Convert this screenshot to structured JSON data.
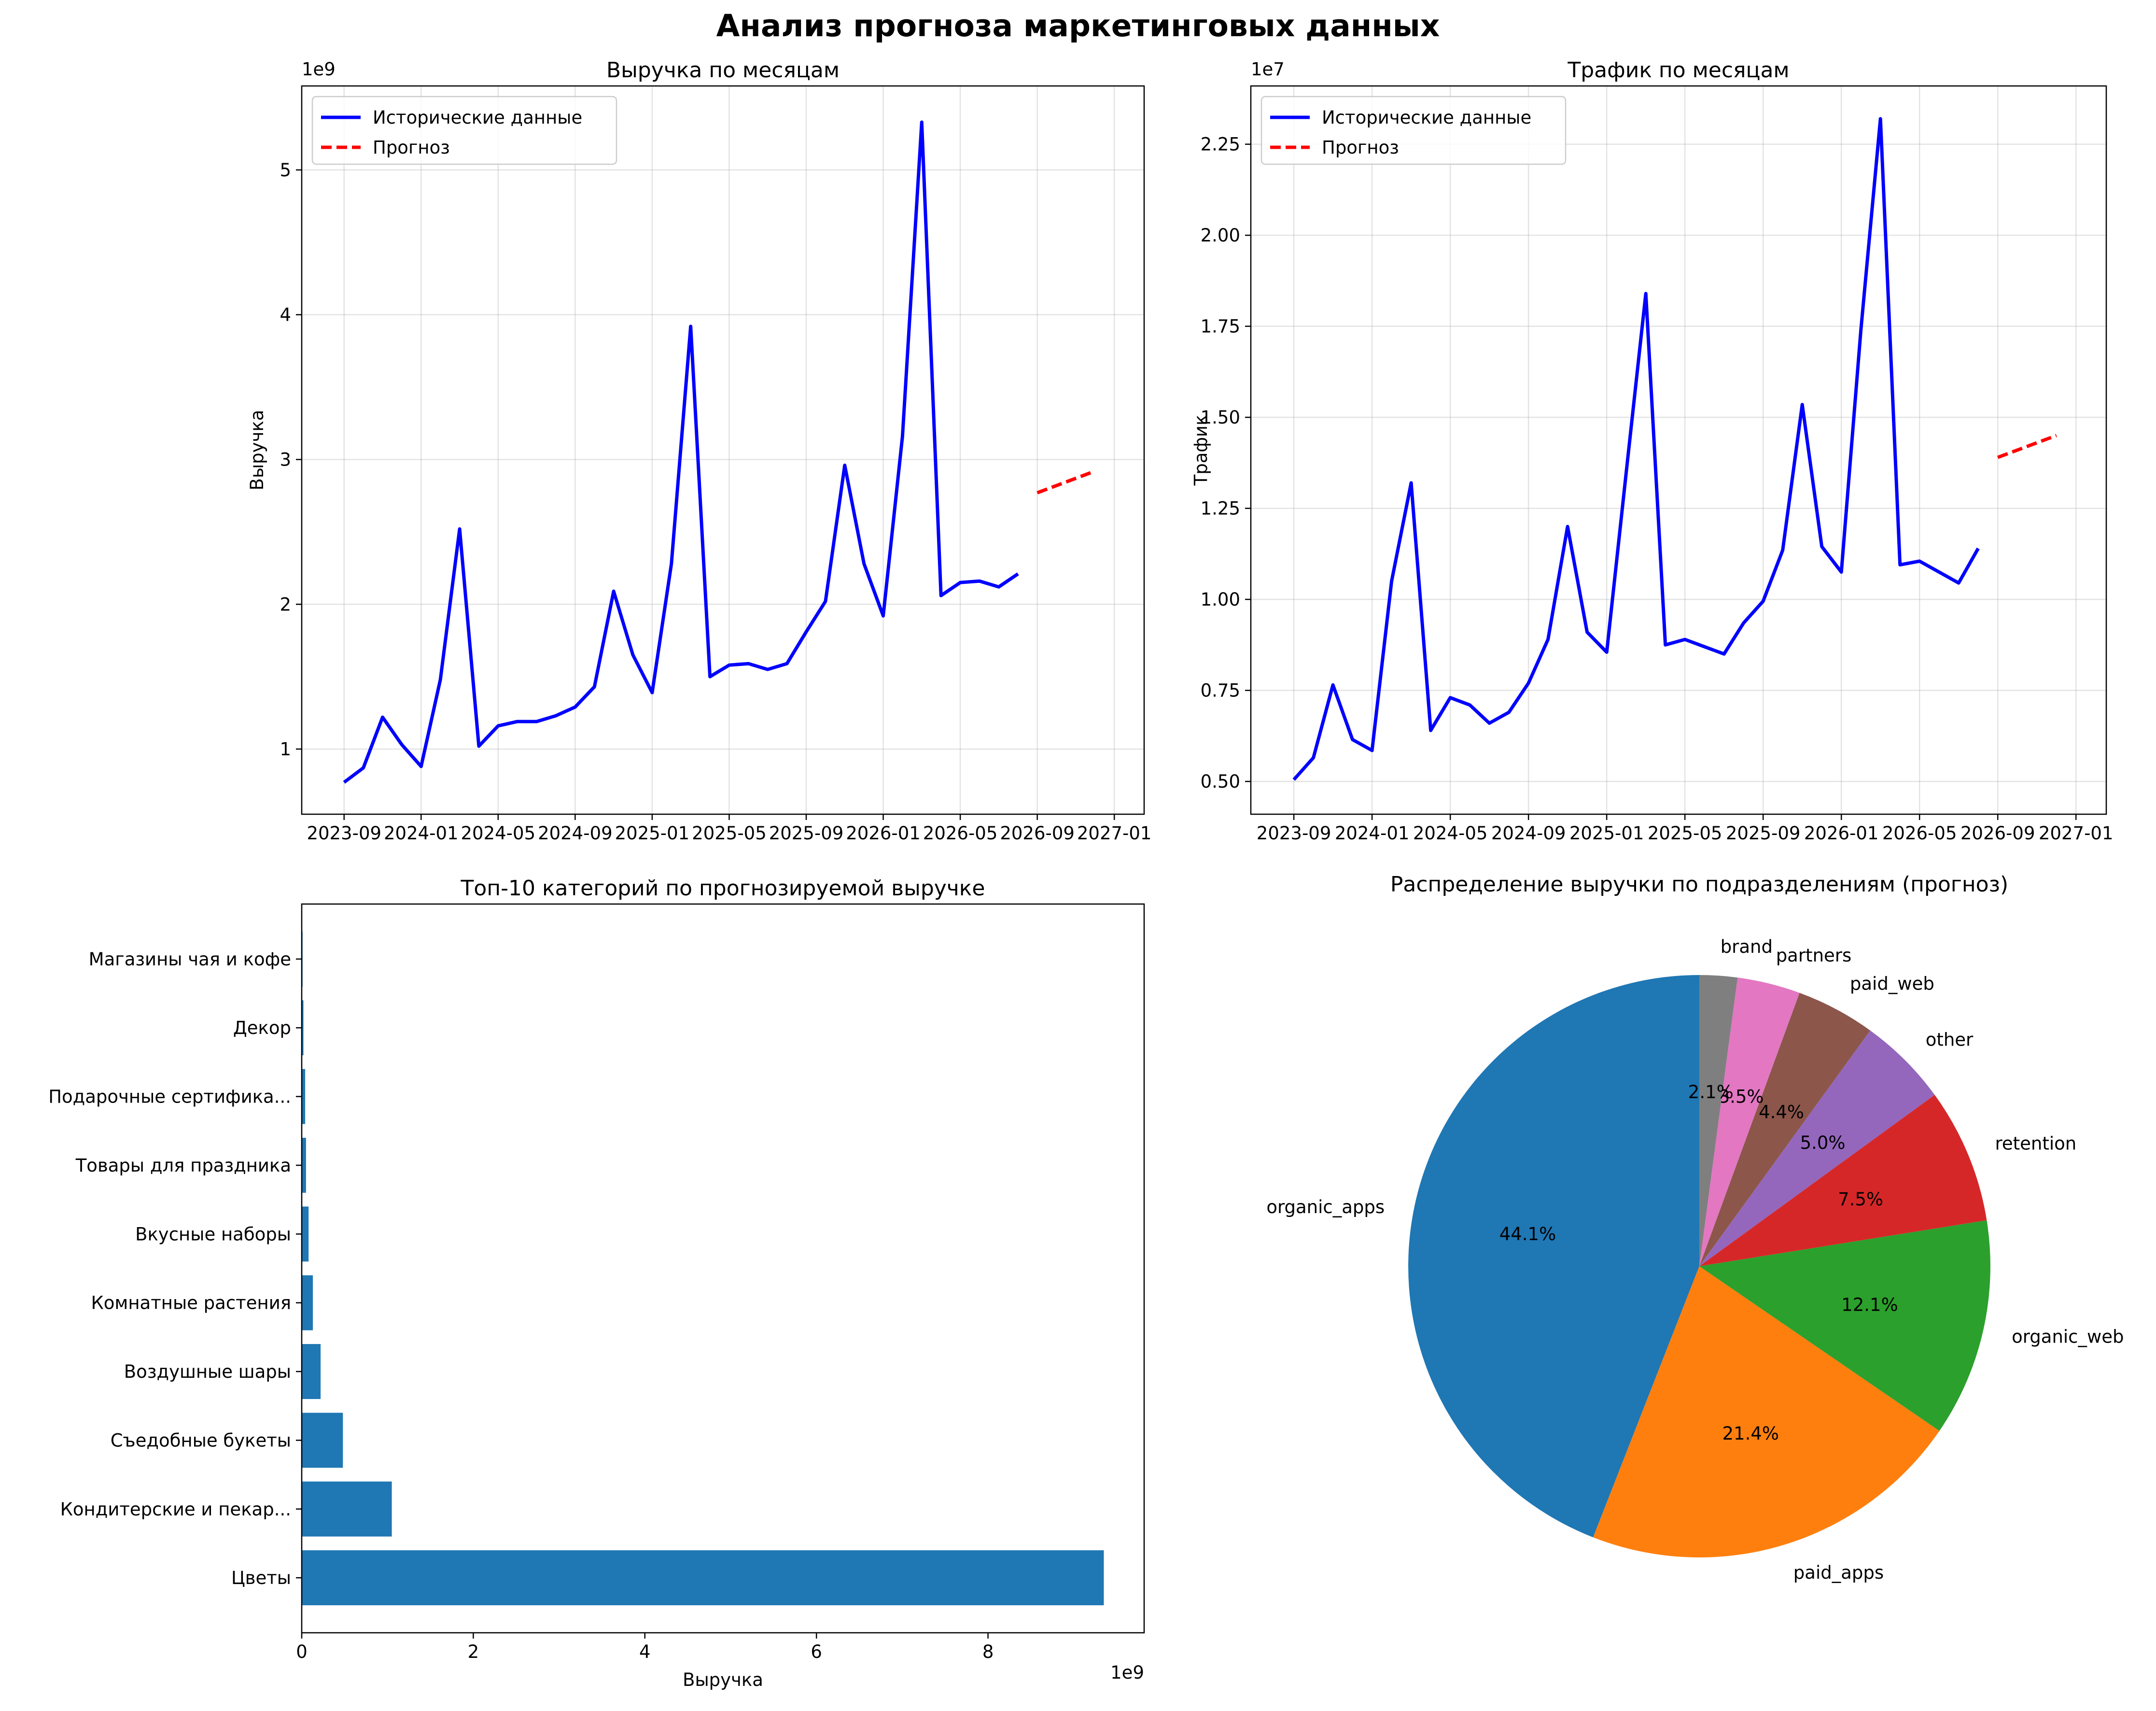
{
  "figure": {
    "title": "Анализ прогноза маркетинговых данных"
  },
  "chart_data": [
    {
      "type": "line",
      "title": "Выручка по месяцам",
      "xlabel": "",
      "ylabel": "Выручка",
      "offset_label": "1e9",
      "x_ticks": [
        "2023-09",
        "2024-01",
        "2024-05",
        "2024-09",
        "2025-01",
        "2025-05",
        "2025-09",
        "2026-01",
        "2026-05",
        "2026-09",
        "2027-01"
      ],
      "y_ticks": [
        "1",
        "2",
        "3",
        "4",
        "5"
      ],
      "ylim": [
        0.55,
        5.58
      ],
      "grid": true,
      "legend": "upper-left",
      "series": [
        {
          "name": "Исторические данные",
          "color": "#0000ff",
          "style": "solid",
          "x": [
            "2023-09",
            "2023-10",
            "2023-11",
            "2023-12",
            "2024-01",
            "2024-02",
            "2024-03",
            "2024-04",
            "2024-05",
            "2024-06",
            "2024-07",
            "2024-08",
            "2024-09",
            "2024-10",
            "2024-11",
            "2024-12",
            "2025-01",
            "2025-02",
            "2025-03",
            "2025-04",
            "2025-05",
            "2025-06",
            "2025-07",
            "2025-08",
            "2025-09",
            "2025-10",
            "2025-11",
            "2025-12",
            "2026-01",
            "2026-02",
            "2026-03",
            "2026-04",
            "2026-05",
            "2026-06",
            "2026-07",
            "2026-08"
          ],
          "values": [
            0.77,
            0.87,
            1.22,
            1.03,
            0.88,
            1.48,
            2.52,
            1.02,
            1.16,
            1.19,
            1.19,
            1.23,
            1.29,
            1.43,
            2.09,
            1.65,
            1.39,
            2.28,
            3.92,
            1.5,
            1.58,
            1.59,
            1.55,
            1.59,
            1.81,
            2.02,
            2.96,
            2.28,
            1.92,
            3.16,
            5.33,
            2.06,
            2.15,
            2.16,
            2.12,
            2.21
          ]
        },
        {
          "name": "Прогноз",
          "color": "#ff0000",
          "style": "dashed",
          "x": [
            "2026-09",
            "2026-12"
          ],
          "values": [
            2.77,
            2.92
          ]
        }
      ]
    },
    {
      "type": "line",
      "title": "Трафик по месяцам",
      "xlabel": "",
      "ylabel": "Трафик",
      "offset_label": "1e7",
      "x_ticks": [
        "2023-09",
        "2024-01",
        "2024-05",
        "2024-09",
        "2025-01",
        "2025-05",
        "2025-09",
        "2026-01",
        "2026-05",
        "2026-09",
        "2027-01"
      ],
      "y_ticks": [
        "0.50",
        "0.75",
        "1.00",
        "1.25",
        "1.50",
        "1.75",
        "2.00",
        "2.25"
      ],
      "ylim": [
        0.41,
        2.41
      ],
      "grid": true,
      "legend": "upper-left",
      "series": [
        {
          "name": "Исторические данные",
          "color": "#0000ff",
          "style": "solid",
          "x": [
            "2023-09",
            "2023-10",
            "2023-11",
            "2023-12",
            "2024-01",
            "2024-02",
            "2024-03",
            "2024-04",
            "2024-05",
            "2024-06",
            "2024-07",
            "2024-08",
            "2024-09",
            "2024-10",
            "2024-11",
            "2024-12",
            "2025-01",
            "2025-02",
            "2025-03",
            "2025-04",
            "2025-05",
            "2025-06",
            "2025-07",
            "2025-08",
            "2025-09",
            "2025-10",
            "2025-11",
            "2025-12",
            "2026-01",
            "2026-02",
            "2026-03",
            "2026-04",
            "2026-05",
            "2026-06",
            "2026-07",
            "2026-08"
          ],
          "values": [
            0.505,
            0.565,
            0.765,
            0.615,
            0.585,
            1.05,
            1.32,
            0.64,
            0.73,
            0.71,
            0.66,
            0.69,
            0.77,
            0.89,
            1.2,
            0.91,
            0.855,
            1.35,
            1.84,
            0.875,
            0.89,
            0.87,
            0.85,
            0.935,
            0.995,
            1.135,
            1.535,
            1.145,
            1.075,
            1.74,
            2.32,
            1.095,
            1.105,
            1.075,
            1.045,
            1.14
          ]
        },
        {
          "name": "Прогноз",
          "color": "#ff0000",
          "style": "dashed",
          "x": [
            "2026-09",
            "2026-12"
          ],
          "values": [
            1.39,
            1.45
          ]
        }
      ]
    },
    {
      "type": "bar",
      "orientation": "horizontal",
      "title": "Топ-10 категорий по прогнозируемой выручке",
      "xlabel": "Выручка",
      "ylabel": "",
      "offset_label": "1e9",
      "x_ticks": [
        "0",
        "2",
        "4",
        "6",
        "8"
      ],
      "xlim": [
        0,
        9.82
      ],
      "grid": false,
      "color": "#1f77b4",
      "categories": [
        "Цветы",
        "Кондитерские и пекар...",
        "Съедобные букеты",
        "Воздушные шары",
        "Комнатные растения",
        "Вкусные наборы",
        "Товары для праздника",
        "Подарочные сертифика...",
        "Декор",
        "Магазины чая и кофе"
      ],
      "values": [
        9.35,
        1.05,
        0.48,
        0.22,
        0.13,
        0.08,
        0.05,
        0.04,
        0.02,
        0.01
      ]
    },
    {
      "type": "pie",
      "title": "Распределение выручки по подразделениям (прогноз)",
      "start_angle_deg": 90,
      "direction": "counterclockwise",
      "slices": [
        {
          "label": "organic_apps",
          "value": 44.1,
          "pct": "44.1%",
          "color": "#1f77b4"
        },
        {
          "label": "paid_apps",
          "value": 21.4,
          "pct": "21.4%",
          "color": "#ff7f0e"
        },
        {
          "label": "organic_web",
          "value": 12.1,
          "pct": "12.1%",
          "color": "#2ca02c"
        },
        {
          "label": "retention",
          "value": 7.5,
          "pct": "7.5%",
          "color": "#d62728"
        },
        {
          "label": "other",
          "value": 5.0,
          "pct": "5.0%",
          "color": "#9467bd"
        },
        {
          "label": "paid_web",
          "value": 4.4,
          "pct": "4.4%",
          "color": "#8c564b"
        },
        {
          "label": "partners",
          "value": 3.5,
          "pct": "3.5%",
          "color": "#e377c2"
        },
        {
          "label": "brand",
          "value": 2.1,
          "pct": "2.1%",
          "color": "#7f7f7f"
        }
      ]
    }
  ]
}
